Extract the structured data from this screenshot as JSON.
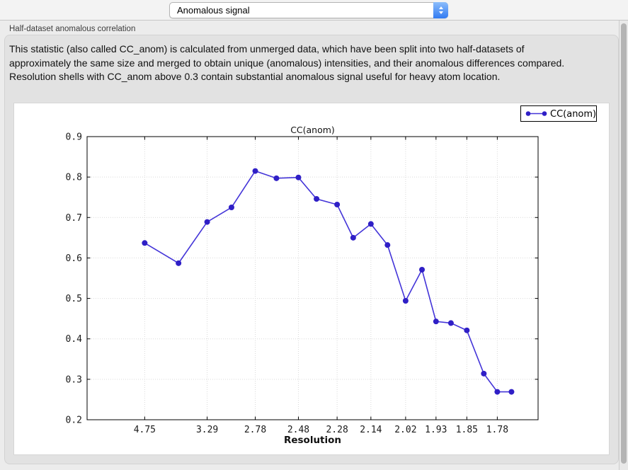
{
  "toolbar": {
    "plot_selector": {
      "value": "Anomalous signal",
      "control": "dropdown"
    }
  },
  "section": {
    "label": "Half-dataset anomalous correlation"
  },
  "description": "This statistic (also called CC_anom) is calculated from unmerged data, which have been split into two half-datasets of approximately the same size and merged to obtain unique (anomalous) intensities, and their anomalous differences compared.  Resolution shells with CC_anom above 0.3 contain substantial anomalous signal useful for heavy atom location.",
  "colors": {
    "window_background": "#ececec",
    "panel_background": "#e2e2e2",
    "chart_background": "#ffffff",
    "accent_blue": "#327bf2",
    "plot_line": "#4334d8",
    "plot_marker": "#2f1fc6",
    "gridline": "#d9d9d9"
  },
  "chart_data": {
    "type": "line",
    "title": "CC(anom)",
    "xlabel": "Resolution",
    "ylabel": "",
    "grid": true,
    "legend": {
      "position": "top-right",
      "entries": [
        "CC(anom)"
      ]
    },
    "x_axis": {
      "unit": "1/d^2 (tick labels show resolution d in Angstrom)",
      "range_invd2": [
        0,
        0.347
      ]
    },
    "ylim": [
      0.2,
      0.9
    ],
    "yticks": [
      "0.2",
      "0.3",
      "0.4",
      "0.5",
      "0.6",
      "0.7",
      "0.8",
      "0.9"
    ],
    "xticks": [
      {
        "d": 4.75,
        "label": "4.75"
      },
      {
        "d": 3.29,
        "label": "3.29"
      },
      {
        "d": 2.78,
        "label": "2.78"
      },
      {
        "d": 2.48,
        "label": "2.48"
      },
      {
        "d": 2.28,
        "label": "2.28"
      },
      {
        "d": 2.14,
        "label": "2.14"
      },
      {
        "d": 2.02,
        "label": "2.02"
      },
      {
        "d": 1.93,
        "label": "1.93"
      },
      {
        "d": 1.85,
        "label": "1.85"
      },
      {
        "d": 1.78,
        "label": "1.78"
      }
    ],
    "series": [
      {
        "name": "CC(anom)",
        "color": "#4334d8",
        "marker_color": "#2f1fc6",
        "points": [
          {
            "d": 4.75,
            "cc": 0.637
          },
          {
            "d": 3.77,
            "cc": 0.587
          },
          {
            "d": 3.29,
            "cc": 0.689
          },
          {
            "d": 3.0,
            "cc": 0.725
          },
          {
            "d": 2.78,
            "cc": 0.815
          },
          {
            "d": 2.62,
            "cc": 0.797
          },
          {
            "d": 2.48,
            "cc": 0.799
          },
          {
            "d": 2.38,
            "cc": 0.746
          },
          {
            "d": 2.28,
            "cc": 0.732
          },
          {
            "d": 2.21,
            "cc": 0.65
          },
          {
            "d": 2.14,
            "cc": 0.684
          },
          {
            "d": 2.08,
            "cc": 0.632
          },
          {
            "d": 2.02,
            "cc": 0.494
          },
          {
            "d": 1.97,
            "cc": 0.571
          },
          {
            "d": 1.93,
            "cc": 0.443
          },
          {
            "d": 1.89,
            "cc": 0.439
          },
          {
            "d": 1.85,
            "cc": 0.421
          },
          {
            "d": 1.81,
            "cc": 0.314
          },
          {
            "d": 1.78,
            "cc": 0.269
          },
          {
            "d": 1.75,
            "cc": 0.269
          }
        ]
      }
    ]
  }
}
